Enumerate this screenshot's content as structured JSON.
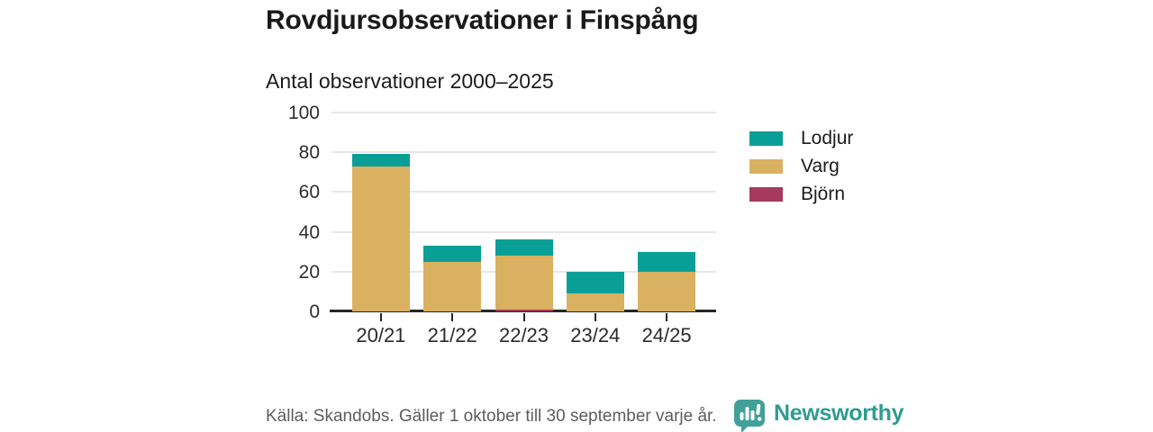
{
  "header": {
    "title": "Rovdjursobservationer i Finspång",
    "subtitle": "Antal observationer 2000–2025"
  },
  "chart_data": {
    "type": "bar",
    "stacked": true,
    "title": "Rovdjursobservationer i Finspång",
    "subtitle": "Antal observationer 2000–2025",
    "categories": [
      "20/21",
      "21/22",
      "22/23",
      "23/24",
      "24/25"
    ],
    "series": [
      {
        "name": "Björn",
        "color": "#a53a5e",
        "values": [
          0,
          0,
          1,
          0,
          0
        ]
      },
      {
        "name": "Varg",
        "color": "#d9b161",
        "values": [
          73,
          25,
          27,
          9,
          20
        ]
      },
      {
        "name": "Lodjur",
        "color": "#0a9f96",
        "values": [
          6,
          8,
          8,
          11,
          10
        ]
      }
    ],
    "totals": [
      79,
      33,
      36,
      20,
      30
    ],
    "legend": [
      {
        "label": "Lodjur",
        "color": "#0a9f96"
      },
      {
        "label": "Varg",
        "color": "#d9b161"
      },
      {
        "label": "Björn",
        "color": "#a53a5e"
      }
    ],
    "legend_position": "right",
    "xlabel": "",
    "ylabel": "",
    "ylim": [
      0,
      100
    ],
    "yticks": [
      0,
      20,
      40,
      60,
      80,
      100
    ],
    "grid": true
  },
  "footer": {
    "source": "Källa: Skandobs. Gäller 1 oktober till 30 september varje år.",
    "brand": "Newsworthy"
  },
  "colors": {
    "lodjur": "#0a9f96",
    "varg": "#d9b161",
    "bjorn": "#a53a5e",
    "brand_teal": "#2f9c92",
    "logo_teal": "#41a098",
    "gridline": "#e7e7e7",
    "axis": "#262626",
    "source_gray": "#5d5d5d"
  }
}
